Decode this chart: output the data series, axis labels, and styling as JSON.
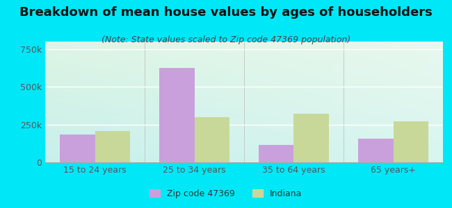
{
  "title": "Breakdown of mean house values by ages of householders",
  "subtitle": "(Note: State values scaled to Zip code 47369 population)",
  "categories": [
    "15 to 24 years",
    "25 to 34 years",
    "35 to 64 years",
    "65 years+"
  ],
  "zip_values": [
    185000,
    625000,
    115000,
    155000
  ],
  "indiana_values": [
    205000,
    300000,
    320000,
    270000
  ],
  "zip_color": "#c9a0dc",
  "indiana_color": "#c8d898",
  "background_outer": "#00e8f8",
  "ylim": [
    0,
    800000
  ],
  "yticks": [
    0,
    250000,
    500000,
    750000
  ],
  "ytick_labels": [
    "0",
    "250k",
    "500k",
    "750k"
  ],
  "legend_labels": [
    "Zip code 47369",
    "Indiana"
  ],
  "bar_width": 0.35,
  "title_fontsize": 13,
  "subtitle_fontsize": 9,
  "tick_fontsize": 9,
  "legend_fontsize": 9
}
